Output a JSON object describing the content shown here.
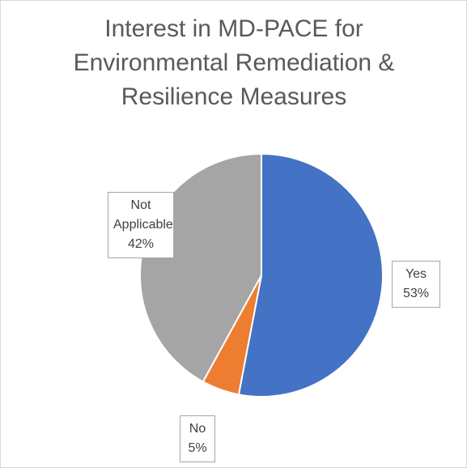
{
  "chart_data": {
    "type": "pie",
    "title": "Interest in MD-PACE for Environmental Remediation & Resilience Measures",
    "categories": [
      "Yes",
      "No",
      "Not Applicable"
    ],
    "values": [
      53,
      5,
      42
    ],
    "value_labels": [
      "53%",
      "5%",
      "42%"
    ],
    "colors": [
      "#4472c4",
      "#ed7d31",
      "#a5a5a5"
    ]
  }
}
